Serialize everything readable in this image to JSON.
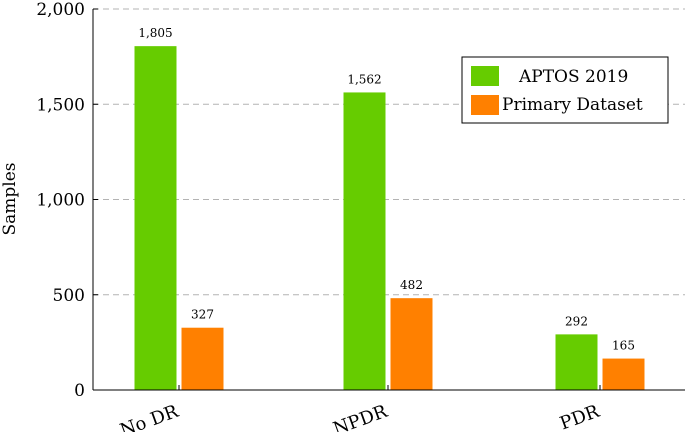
{
  "chart_data": {
    "type": "bar",
    "title": "",
    "xlabel": "",
    "ylabel": "Samples",
    "categories": [
      "No DR",
      "NPDR",
      "PDR"
    ],
    "series": [
      {
        "name": "APTOS 2019",
        "values": [
          1805,
          1562,
          292
        ],
        "value_labels": [
          "1,805",
          "1,562",
          "292"
        ],
        "color": "#66cc00"
      },
      {
        "name": "Primary Dataset",
        "values": [
          327,
          482,
          165
        ],
        "value_labels": [
          "327",
          "482",
          "165"
        ],
        "color": "#ff8000"
      }
    ],
    "ylim": [
      0,
      2000
    ],
    "yticks": [
      0,
      500,
      1000,
      1500,
      2000
    ],
    "ytick_labels": [
      "0",
      "500",
      "1,000",
      "1,500",
      "2,000"
    ],
    "grid": "horizontal dashed",
    "legend_position": "top-right"
  }
}
